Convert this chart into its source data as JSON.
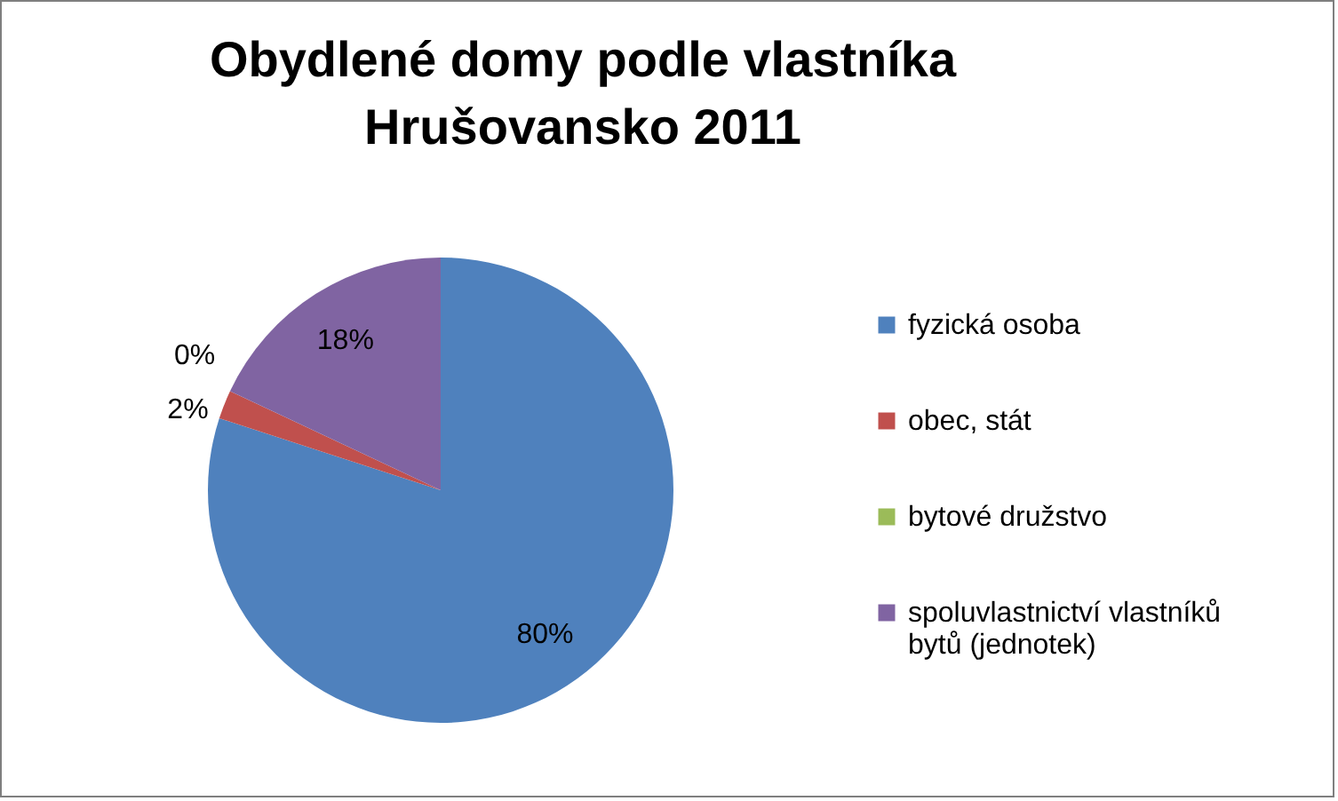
{
  "chart_data": {
    "type": "pie",
    "title": "Obydlené domy podle vlastníka\nHrušovansko 2011",
    "categories": [
      "fyzická osoba",
      "obec, stát",
      "bytové družstvo",
      "spoluvlastnictví vlastníků bytů (jednotek)"
    ],
    "values": [
      80,
      2,
      0,
      18
    ],
    "colors": [
      "#4f81bd",
      "#c0504d",
      "#9bbb59",
      "#8064a2"
    ],
    "value_labels": [
      "80%",
      "2%",
      "0%",
      "18%"
    ],
    "legend": "right"
  }
}
